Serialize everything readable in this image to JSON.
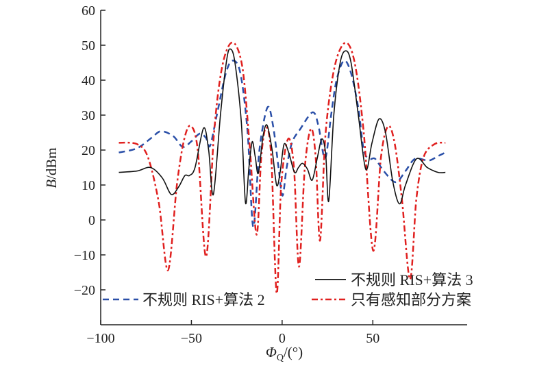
{
  "chart_data": {
    "type": "line",
    "title": "",
    "xlabel": "ΦQ/(°)",
    "xlabel_main": "Φ",
    "xlabel_sub": "Q",
    "xlabel_rest": "/(°)",
    "ylabel": "B/dBm",
    "ylabel_main": "B",
    "ylabel_rest": "/dBm",
    "xlim": [
      -100,
      102
    ],
    "ylim": [
      -30,
      60
    ],
    "xticks": [
      -100,
      -50,
      0,
      50
    ],
    "xtick_labels": [
      "−100",
      "−50",
      "0",
      "50"
    ],
    "yticks": [
      -20,
      -10,
      0,
      10,
      20,
      30,
      40,
      50,
      60
    ],
    "ytick_labels": [
      "−20",
      "−10",
      "0",
      "10",
      "20",
      "30",
      "40",
      "50",
      "60"
    ],
    "grid": false,
    "legend_placement": "bottom",
    "series": [
      {
        "name": "不规则 RIS+算法 3",
        "color": "#111111",
        "style": "solid",
        "x": [
          -90,
          -80,
          -72.5,
          -66,
          -61.1,
          -57,
          -53.6,
          -51.1,
          -48,
          -43.3,
          -40.5,
          -37.9,
          -34,
          -30.5,
          -28.4,
          -26,
          -22.5,
          -20.2,
          -18.3,
          -16.5,
          -14.8,
          -13.1,
          -10.5,
          -8.3,
          -5.5,
          -3,
          -1,
          1.1,
          3.8,
          6.8,
          9,
          11.2,
          14,
          16.6,
          19.5,
          21.9,
          24,
          25.7,
          28.5,
          32,
          35.1,
          38,
          42,
          46.1,
          49.5,
          53.4,
          57,
          61,
          64.7,
          68,
          74.1,
          80,
          86,
          90
        ],
        "y": [
          13.6,
          14,
          15,
          12,
          7.3,
          9.5,
          12.7,
          12.7,
          15,
          26.3,
          20,
          7.3,
          30,
          46,
          48.9,
          45,
          28,
          4.9,
          15,
          22.4,
          18,
          13.4,
          24,
          27.1,
          20,
          9.9,
          14,
          21.7,
          19,
          13.6,
          15,
          16.2,
          14.5,
          11.4,
          18,
          23.2,
          19,
          5.4,
          30,
          45,
          48.4,
          45,
          30,
          14.5,
          22,
          28.9,
          25,
          11,
          4.6,
          10,
          17.5,
          15,
          13.6,
          13.6
        ]
      },
      {
        "name": "不规则 RIS+算法 2",
        "color": "#2a4fa8",
        "style": "dashed",
        "x": [
          -90,
          -80,
          -72,
          -66.8,
          -60,
          -54.8,
          -50,
          -45.4,
          -42,
          -39.7,
          -36,
          -31,
          -27.2,
          -23,
          -19,
          -15.9,
          -12.5,
          -8.1,
          -5,
          -2,
          0.2,
          2.5,
          5.5,
          10,
          16.8,
          20,
          23.7,
          27,
          30,
          34.1,
          38,
          42,
          45,
          48.2,
          51.3,
          56,
          62.6,
          68,
          73.3,
          80.8,
          86,
          90
        ],
        "y": [
          19.3,
          20.5,
          23.5,
          25.4,
          24,
          20.9,
          22.5,
          24.7,
          23.5,
          21.2,
          30,
          42,
          45.6,
          42,
          25,
          -2,
          20,
          32.2,
          27,
          15,
          6.9,
          15,
          22.2,
          26,
          30.8,
          27,
          17.6,
          30,
          40,
          45.6,
          42,
          32,
          20,
          17.5,
          17.5,
          14,
          10.8,
          14,
          17.5,
          17,
          18.3,
          19.3
        ]
      },
      {
        "name": "只有感知部分方案",
        "color": "#e0201f",
        "style": "dashdot",
        "x": [
          -90,
          -80,
          -74,
          -68,
          -62.9,
          -58,
          -54,
          -50.4,
          -46.5,
          -41.9,
          -37.5,
          -33,
          -27.4,
          -22,
          -18,
          -14.1,
          -11.5,
          -8.8,
          -6,
          -3,
          -0.5,
          3.3,
          6.5,
          9.3,
          12.5,
          15.9,
          18.5,
          20.9,
          24,
          29,
          34.9,
          40,
          45,
          50.2,
          54.5,
          58.4,
          62,
          66,
          70.5,
          74,
          78,
          84,
          90
        ],
        "y": [
          22.1,
          21.7,
          18,
          5,
          -14.4,
          10,
          23,
          26.9,
          20,
          -10.5,
          25,
          44,
          50.8,
          44,
          22,
          -4.2,
          18,
          26.5,
          18,
          -21,
          10,
          23.2,
          15,
          -13.4,
          15,
          26.1,
          18,
          -5.9,
          25,
          44,
          50.7,
          45,
          25,
          -8.8,
          18,
          26.8,
          22,
          6,
          -17,
          6,
          18,
          21.7,
          22.1
        ]
      }
    ]
  }
}
